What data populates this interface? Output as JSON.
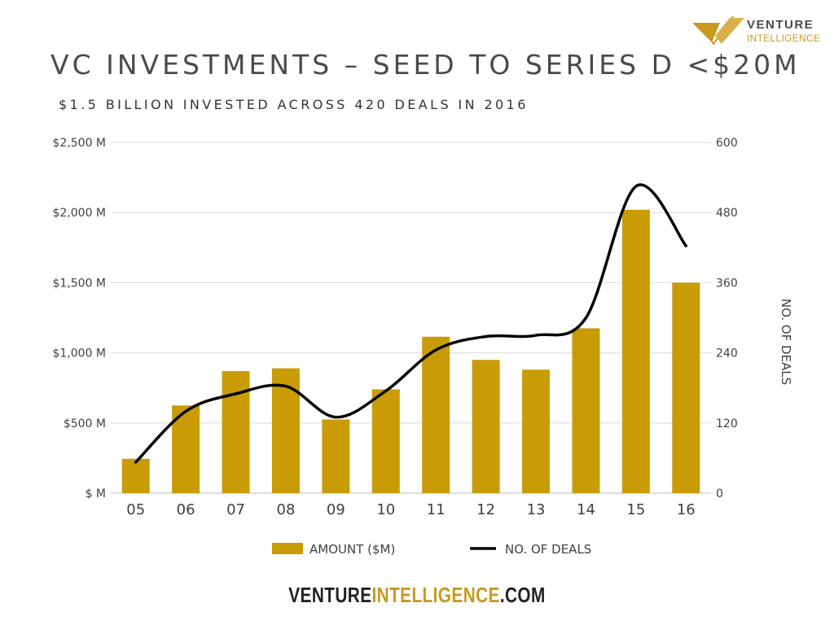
{
  "logo": {
    "line1": "VENTURE",
    "line2": "INTELLIGENCE"
  },
  "footer": {
    "part1": "VENTURE",
    "part2": "INTELLIGENCE",
    "part3": ".COM"
  },
  "colors": {
    "bar": "#c99c07",
    "line": "#000000",
    "grid": "#d9d9d9",
    "accent": "#c79a1f"
  },
  "chart_data": {
    "type": "bar",
    "title": "VC INVESTMENTS – SEED TO SERIES D <$20M",
    "subtitle": "$1.5 BILLION INVESTED ACROSS 420 DEALS IN 2016",
    "categories": [
      "05",
      "06",
      "07",
      "08",
      "09",
      "10",
      "11",
      "12",
      "13",
      "14",
      "15",
      "16"
    ],
    "series": [
      {
        "name": "AMOUNT ($M)",
        "type": "bar",
        "axis": "left",
        "values": [
          245,
          625,
          870,
          890,
          525,
          740,
          1115,
          950,
          880,
          1175,
          2020,
          1500
        ]
      },
      {
        "name": "NO. OF DEALS",
        "type": "line",
        "axis": "right",
        "smooth": true,
        "values": [
          53,
          140,
          170,
          183,
          130,
          175,
          245,
          268,
          270,
          300,
          525,
          423
        ]
      }
    ],
    "y_left": {
      "ticks": [
        "$ M",
        "$500 M",
        "$1,000 M",
        "$1,500 M",
        "$2,000 M",
        "$2,500 M"
      ],
      "ylim": [
        0,
        2500
      ]
    },
    "y_right": {
      "ticks": [
        "0",
        "120",
        "240",
        "360",
        "480",
        "600"
      ],
      "ylim": [
        0,
        600
      ],
      "label": "NO. OF DEALS"
    },
    "grid": true,
    "legend": "bottom"
  }
}
